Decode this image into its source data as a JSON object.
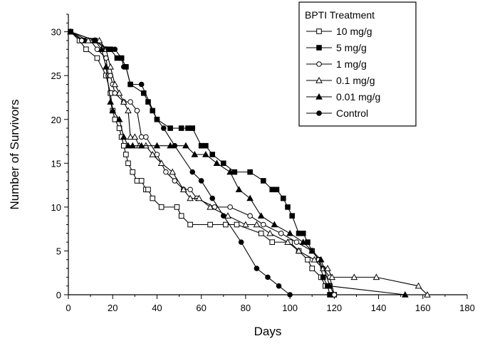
{
  "chart_data": {
    "type": "line",
    "title": "",
    "xlabel": "Days",
    "ylabel": "Number of Survivors",
    "xlim": [
      0,
      180
    ],
    "ylim": [
      0,
      32
    ],
    "xticks": [
      "0",
      "20",
      "40",
      "60",
      "80",
      "100",
      "120",
      "140",
      "160",
      "180"
    ],
    "yticks": [
      "0",
      "5",
      "10",
      "15",
      "20",
      "25",
      "30"
    ],
    "grid": false,
    "legend_title": "BPTI Treatment",
    "legend_position": "top-right",
    "series": [
      {
        "name": "10 mg/g",
        "marker": "open-square",
        "x": [
          1,
          5,
          8,
          13,
          17,
          19,
          20,
          21,
          23,
          24,
          25,
          26,
          27,
          29,
          31,
          33,
          35,
          36,
          38,
          42,
          49,
          51,
          55,
          64,
          71,
          76,
          87,
          92,
          100,
          104,
          108,
          110,
          114,
          116,
          118,
          120
        ],
        "y": [
          30,
          29,
          28,
          27,
          25,
          23,
          21,
          20,
          19,
          18,
          17,
          16,
          15,
          14,
          13,
          13,
          12,
          12,
          11,
          10,
          10,
          9,
          8,
          8,
          8,
          8,
          7,
          6,
          6,
          5,
          4,
          3,
          2,
          1,
          1,
          0
        ]
      },
      {
        "name": "5 mg/g",
        "marker": "filled-square",
        "x": [
          1,
          7,
          12,
          17,
          19,
          22,
          24,
          26,
          28,
          34,
          36,
          38,
          40,
          46,
          51,
          54,
          56,
          60,
          62,
          65,
          70,
          75,
          82,
          88,
          92,
          94,
          97,
          99,
          101,
          104,
          106,
          108,
          110,
          113,
          115,
          117,
          118
        ],
        "y": [
          30,
          29,
          29,
          28,
          28,
          27,
          27,
          26,
          24,
          23,
          22,
          21,
          20,
          19,
          19,
          19,
          19,
          17,
          17,
          16,
          15,
          14,
          14,
          13,
          12,
          12,
          11,
          10,
          9,
          7,
          7,
          6,
          5,
          4,
          2,
          1,
          0
        ]
      },
      {
        "name": "1 mg/g",
        "marker": "open-circle",
        "x": [
          1,
          6,
          10,
          13,
          17,
          18,
          19,
          20,
          21,
          25,
          28,
          31,
          33,
          35,
          40,
          44,
          48,
          52,
          55,
          58,
          66,
          73,
          82,
          88,
          96,
          103,
          110,
          113,
          115,
          118,
          120
        ],
        "y": [
          30,
          29,
          29,
          28,
          27,
          25,
          25,
          24,
          23,
          22,
          22,
          21,
          18,
          18,
          16,
          14,
          13,
          12,
          12,
          11,
          10,
          10,
          9,
          8,
          7,
          6,
          5,
          4,
          3,
          2,
          0
        ]
      },
      {
        "name": "0.1 mg/g",
        "marker": "open-triangle",
        "x": [
          1,
          9,
          14,
          17,
          19,
          21,
          23,
          25,
          27,
          28,
          30,
          32,
          35,
          38,
          42,
          47,
          52,
          55,
          59,
          64,
          72,
          80,
          85,
          91,
          99,
          104,
          111,
          115,
          117,
          119,
          129,
          139,
          158,
          162
        ],
        "y": [
          30,
          29,
          29,
          28,
          26,
          24,
          23,
          22,
          21,
          18,
          18,
          17,
          17,
          16,
          15,
          14,
          12,
          11,
          11,
          10,
          9,
          8,
          8,
          7,
          6,
          5,
          4,
          3,
          3,
          2,
          2,
          2,
          1,
          0
        ]
      },
      {
        "name": "0.01 mg/g",
        "marker": "filled-triangle",
        "x": [
          1,
          12,
          15,
          17,
          19,
          20,
          23,
          25,
          27,
          29,
          33,
          40,
          46,
          53,
          57,
          62,
          67,
          73,
          77,
          82,
          87,
          93,
          100,
          106,
          110,
          114,
          118,
          152
        ],
        "y": [
          30,
          29,
          28,
          26,
          22,
          21,
          20,
          18,
          17,
          17,
          17,
          17,
          17,
          17,
          16,
          16,
          15,
          14,
          12,
          11,
          9,
          8,
          7,
          6,
          5,
          4,
          1,
          0
        ]
      },
      {
        "name": "Control",
        "marker": "filled-circle",
        "x": [
          1,
          12,
          18,
          21,
          24,
          25,
          26,
          28,
          33,
          40,
          43,
          48,
          56,
          60,
          65,
          70,
          78,
          85,
          90,
          95,
          100
        ],
        "y": [
          30,
          29,
          28,
          28,
          27,
          26,
          26,
          24,
          24,
          20,
          19,
          17,
          14,
          13,
          11,
          9,
          6,
          3,
          2,
          1,
          0
        ]
      }
    ]
  }
}
